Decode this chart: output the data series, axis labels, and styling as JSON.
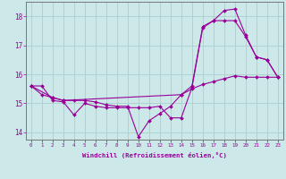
{
  "xlabel": "Windchill (Refroidissement éolien,°C)",
  "background_color": "#cce8e8",
  "grid_color": "#aacfcf",
  "line_color": "#990099",
  "xmin": -0.5,
  "xmax": 23.5,
  "ymin": 13.75,
  "ymax": 18.5,
  "yticks": [
    14,
    15,
    16,
    17,
    18
  ],
  "xticks": [
    0,
    1,
    2,
    3,
    4,
    5,
    6,
    7,
    8,
    9,
    10,
    11,
    12,
    13,
    14,
    15,
    16,
    17,
    18,
    19,
    20,
    21,
    22,
    23
  ],
  "series1_x": [
    0,
    1,
    2,
    3,
    4,
    5,
    6,
    7,
    8,
    9,
    10,
    11,
    12,
    13,
    14,
    15,
    16,
    17,
    18,
    19,
    20,
    21,
    22,
    23
  ],
  "series1_y": [
    15.6,
    15.6,
    15.1,
    15.05,
    14.6,
    15.0,
    14.9,
    14.85,
    14.85,
    14.85,
    14.85,
    14.85,
    14.9,
    14.5,
    14.5,
    15.55,
    17.6,
    17.85,
    17.85,
    17.85,
    17.3,
    16.6,
    16.5,
    15.9
  ],
  "series2_x": [
    0,
    1,
    2,
    3,
    4,
    5,
    6,
    7,
    8,
    9,
    10,
    11,
    12,
    13,
    14,
    15,
    16,
    17,
    18,
    19,
    20,
    21,
    22,
    23
  ],
  "series2_y": [
    15.6,
    15.3,
    15.2,
    15.1,
    15.1,
    15.1,
    15.05,
    14.95,
    14.9,
    14.9,
    13.85,
    14.4,
    14.65,
    14.9,
    15.3,
    15.5,
    15.65,
    15.75,
    15.85,
    15.95,
    15.9,
    15.9,
    15.9,
    15.9
  ],
  "series3_x": [
    0,
    2,
    3,
    14,
    15,
    16,
    17,
    18,
    19,
    20,
    21,
    22,
    23
  ],
  "series3_y": [
    15.6,
    15.2,
    15.1,
    15.3,
    15.6,
    17.65,
    17.85,
    18.2,
    18.25,
    17.35,
    16.6,
    16.5,
    15.9
  ]
}
